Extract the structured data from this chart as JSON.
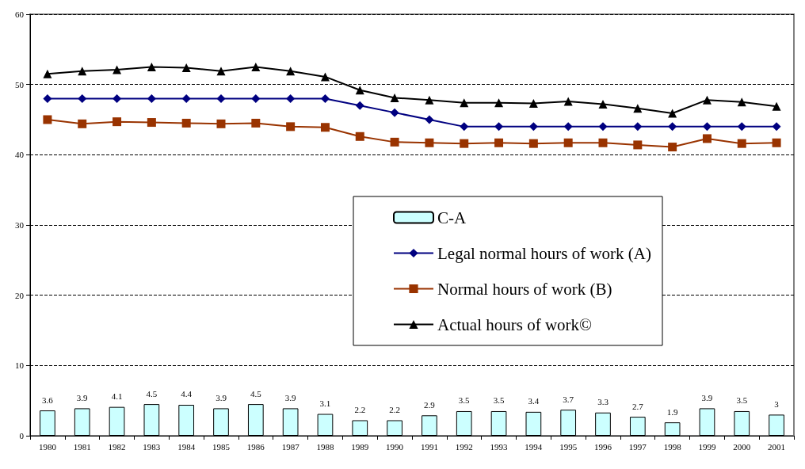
{
  "chart_data": {
    "type": "line",
    "categories": [
      "1980",
      "1981",
      "1982",
      "1983",
      "1984",
      "1985",
      "1986",
      "1987",
      "1988",
      "1989",
      "1990",
      "1991",
      "1992",
      "1993",
      "1994",
      "1995",
      "1996",
      "1997",
      "1998",
      "1999",
      "2000",
      "2001"
    ],
    "series": [
      {
        "name": "C-A",
        "type": "bar",
        "color": "#ccffff",
        "data_labels": true,
        "values": [
          3.6,
          3.9,
          4.1,
          4.5,
          4.4,
          3.9,
          4.5,
          3.9,
          3.1,
          2.2,
          2.2,
          2.9,
          3.5,
          3.5,
          3.4,
          3.7,
          3.3,
          2.7,
          1.9,
          3.9,
          3.5,
          3
        ]
      },
      {
        "name": "Legal normal hours of work (A)",
        "marker": "diamond",
        "color": "#000080",
        "values": [
          48,
          48,
          48,
          48,
          48,
          48,
          48,
          48,
          48,
          47,
          46,
          45,
          44,
          44,
          44,
          44,
          44,
          44,
          44,
          44,
          44,
          44
        ]
      },
      {
        "name": "Normal hours of work (B)",
        "marker": "square",
        "color": "#993300",
        "values": [
          45.0,
          44.4,
          44.7,
          44.6,
          44.5,
          44.4,
          44.5,
          44.0,
          43.9,
          42.6,
          41.8,
          41.7,
          41.6,
          41.7,
          41.6,
          41.7,
          41.7,
          41.4,
          41.1,
          42.3,
          41.6,
          41.7
        ]
      },
      {
        "name": "Actual hours of work©",
        "marker": "triangle",
        "color": "#000000",
        "values": [
          51.5,
          51.9,
          52.1,
          52.5,
          52.4,
          51.9,
          52.5,
          51.9,
          51.1,
          49.2,
          48.1,
          47.8,
          47.4,
          47.4,
          47.3,
          47.6,
          47.2,
          46.6,
          45.9,
          47.8,
          47.5,
          46.9
        ]
      }
    ],
    "ylim": [
      0,
      60
    ],
    "yticks": [
      0,
      10,
      20,
      30,
      40,
      50,
      60
    ],
    "grid": "y",
    "legend": "right"
  }
}
